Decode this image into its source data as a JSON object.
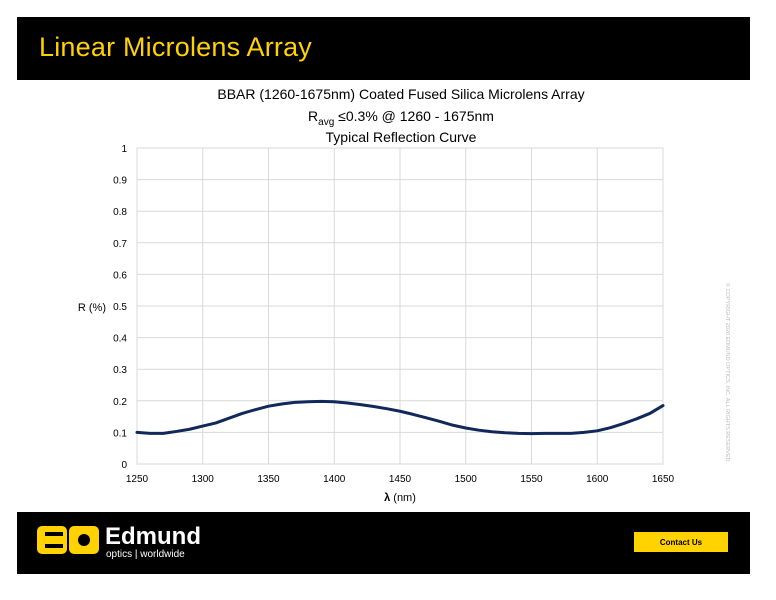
{
  "header": {
    "title": "Linear Microlens Array"
  },
  "footer": {
    "logo_text": "Edmund",
    "logo_subtext": "optics | worldwide",
    "contact_label": "Contact Us"
  },
  "copyright": "© COPYRIGHT 2020 EDMUND OPTICS, INC. ALL RIGHTS RESERVED",
  "colors": {
    "brand_yellow": "#ffd200",
    "header_bg": "#000000",
    "curve": "#10285a",
    "grid": "#d9d9d9"
  },
  "chart_data": {
    "type": "line",
    "title_lines": [
      "BBAR (1260-1675nm) Coated Fused Silica Microlens Array",
      "Ravg ≤0.3% @ 1260 - 1675nm",
      "Typical Reflection Curve"
    ],
    "title_line2": {
      "prefix": "R",
      "subscript": "avg",
      "rest": " ≤0.3% @ 1260 - 1675nm"
    },
    "xlabel": {
      "symbol": "λ",
      "unit": " (nm)"
    },
    "ylabel": "R (%)",
    "xlim": [
      1250,
      1650
    ],
    "ylim": [
      0,
      1
    ],
    "x_ticks": [
      "1250",
      "1300",
      "1350",
      "1400",
      "1450",
      "1500",
      "1550",
      "1600",
      "1650"
    ],
    "y_ticks": [
      "0",
      "0.1",
      "0.2",
      "0.3",
      "0.4",
      "0.5",
      "0.6",
      "0.7",
      "0.8",
      "0.9",
      "1"
    ],
    "grid": true,
    "series": [
      {
        "x": [
          1250,
          1260,
          1270,
          1280,
          1290,
          1300,
          1310,
          1320,
          1330,
          1340,
          1350,
          1360,
          1370,
          1380,
          1390,
          1400,
          1410,
          1420,
          1430,
          1440,
          1450,
          1460,
          1470,
          1480,
          1490,
          1500,
          1510,
          1520,
          1530,
          1540,
          1550,
          1560,
          1570,
          1580,
          1590,
          1600,
          1610,
          1620,
          1630,
          1640,
          1650
        ],
        "values": [
          0.1,
          0.097,
          0.097,
          0.103,
          0.11,
          0.12,
          0.13,
          0.145,
          0.16,
          0.172,
          0.183,
          0.19,
          0.195,
          0.197,
          0.198,
          0.197,
          0.193,
          0.188,
          0.182,
          0.175,
          0.167,
          0.157,
          0.146,
          0.135,
          0.123,
          0.114,
          0.107,
          0.102,
          0.099,
          0.097,
          0.096,
          0.097,
          0.097,
          0.097,
          0.1,
          0.105,
          0.115,
          0.128,
          0.143,
          0.16,
          0.185
        ]
      }
    ]
  }
}
